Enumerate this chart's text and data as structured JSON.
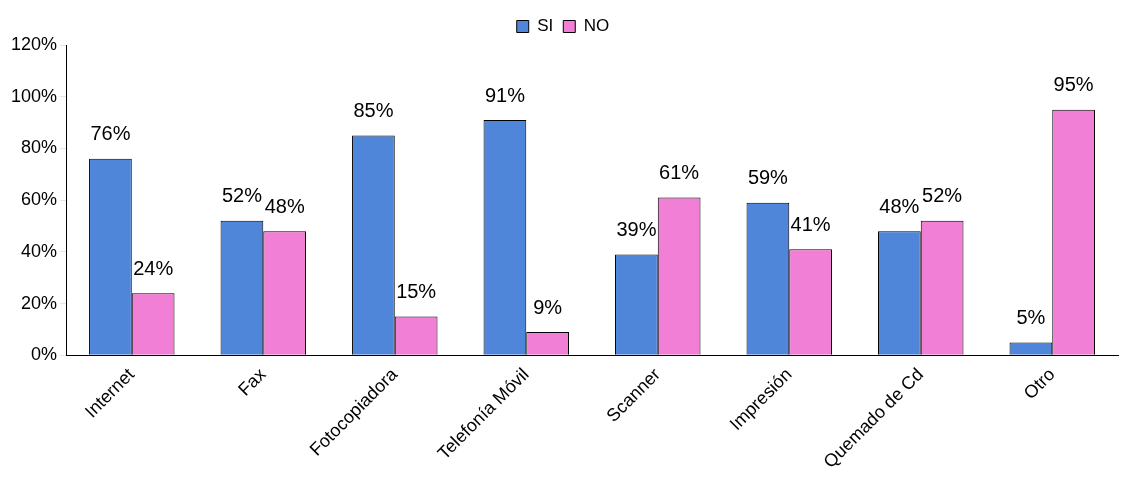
{
  "chart_data": {
    "type": "bar",
    "categories": [
      "Internet",
      "Fax",
      "Fotocopiadora",
      "Telefonía Móvil",
      "Scanner",
      "Impresión",
      "Quemado de Cd",
      "Otro"
    ],
    "series": [
      {
        "name": "SI",
        "color": "#4f86d9",
        "values": [
          76,
          52,
          85,
          91,
          39,
          59,
          48,
          5
        ],
        "value_labels": [
          "76%",
          "52%",
          "85%",
          "91%",
          "39%",
          "59%",
          "48%",
          "5%"
        ]
      },
      {
        "name": "NO",
        "color": "#f27fd6",
        "values": [
          24,
          48,
          15,
          9,
          61,
          41,
          52,
          95
        ],
        "value_labels": [
          "24%",
          "48%",
          "15%",
          "9%",
          "61%",
          "41%",
          "52%",
          "95%"
        ]
      }
    ],
    "ylim": [
      0,
      120
    ],
    "yticks": [
      {
        "value": 0,
        "label": "0%"
      },
      {
        "value": 20,
        "label": "20%"
      },
      {
        "value": 40,
        "label": "40%"
      },
      {
        "value": 60,
        "label": "60%"
      },
      {
        "value": 80,
        "label": "80%"
      },
      {
        "value": 100,
        "label": "100%"
      },
      {
        "value": 120,
        "label": "120%"
      }
    ],
    "grid": false,
    "legend": "top"
  }
}
